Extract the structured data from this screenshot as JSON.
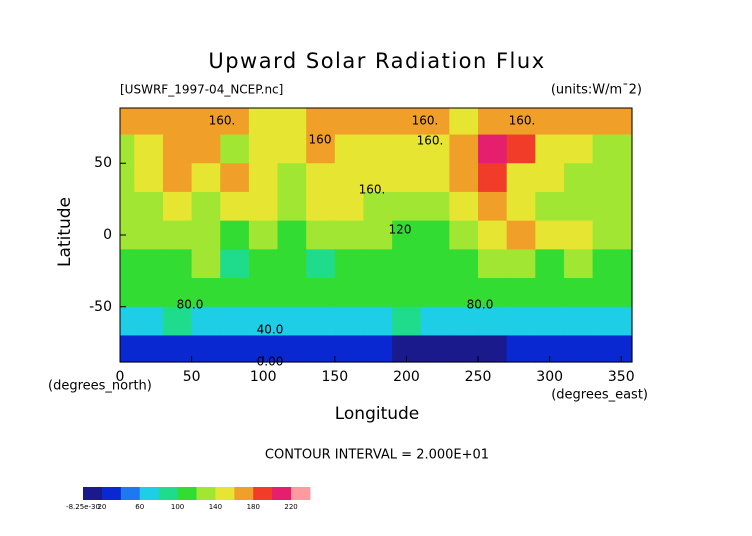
{
  "chart_data": {
    "type": "contour",
    "title": "Upward Solar Radiation Flux",
    "file_label": "[USWRF_1997-04_NCEP.nc]",
    "units_label": "(units:W/m¯2)",
    "x_label": "Longitude",
    "y_label": "Latitude",
    "x_unit_label": "(degrees_east)",
    "y_unit_label": "(degrees_north)",
    "xlim": [
      0,
      357.5
    ],
    "ylim": [
      -88.5,
      88.5
    ],
    "xticks": [
      0,
      50,
      100,
      150,
      200,
      250,
      300,
      350
    ],
    "yticks": [
      -50,
      0,
      50
    ],
    "x": [
      0,
      20,
      40,
      60,
      80,
      100,
      120,
      140,
      160,
      180,
      200,
      220,
      240,
      260,
      280,
      300,
      320,
      340
    ],
    "y": [
      80,
      60,
      40,
      20,
      0,
      -20,
      -40,
      -60,
      -80
    ],
    "z": [
      [
        165,
        160,
        165,
        165,
        160,
        150,
        150,
        160,
        160,
        165,
        160,
        160,
        155,
        165,
        160,
        165,
        160,
        160
      ],
      [
        130,
        140,
        175,
        165,
        130,
        140,
        150,
        160,
        150,
        145,
        140,
        140,
        175,
        200,
        190,
        150,
        140,
        135
      ],
      [
        130,
        140,
        165,
        150,
        175,
        140,
        130,
        140,
        150,
        145,
        140,
        150,
        160,
        180,
        150,
        140,
        130,
        125
      ],
      [
        125,
        130,
        140,
        135,
        140,
        150,
        120,
        140,
        150,
        135,
        130,
        125,
        140,
        165,
        150,
        135,
        130,
        125
      ],
      [
        120,
        125,
        130,
        120,
        115,
        120,
        110,
        120,
        125,
        120,
        115,
        115,
        125,
        140,
        160,
        140,
        150,
        130
      ],
      [
        110,
        115,
        105,
        120,
        95,
        100,
        105,
        85,
        100,
        110,
        110,
        105,
        115,
        120,
        125,
        110,
        120,
        115
      ],
      [
        105,
        105,
        100,
        100,
        100,
        105,
        100,
        100,
        100,
        105,
        100,
        100,
        100,
        105,
        100,
        100,
        100,
        105
      ],
      [
        75,
        70,
        80,
        75,
        70,
        75,
        75,
        70,
        75,
        75,
        80,
        75,
        75,
        70,
        75,
        70,
        75,
        75
      ],
      [
        30,
        25,
        30,
        25,
        30,
        30,
        25,
        20,
        25,
        30,
        10,
        5,
        5,
        10,
        25,
        30,
        30,
        25
      ]
    ],
    "contour_labels": [
      "160.",
      "160.",
      "160.",
      "160",
      "160.",
      "160.",
      "120",
      "80.0",
      "80.0",
      "40.0",
      "0.00"
    ],
    "contour_interval_label": "CONTOUR INTERVAL = 2.000E+01",
    "clim": [
      0,
      240
    ],
    "colors": [
      "#1a1a8c",
      "#0a28d2",
      "#1e78f0",
      "#1ecde6",
      "#1edc8c",
      "#32dc32",
      "#a0e632",
      "#e6e632",
      "#f0a028",
      "#f03c28",
      "#e61e6e",
      "#ff9aa0"
    ],
    "colorbar_ticks": [
      -8.25e-30,
      20,
      60,
      100,
      140,
      180,
      220
    ]
  }
}
